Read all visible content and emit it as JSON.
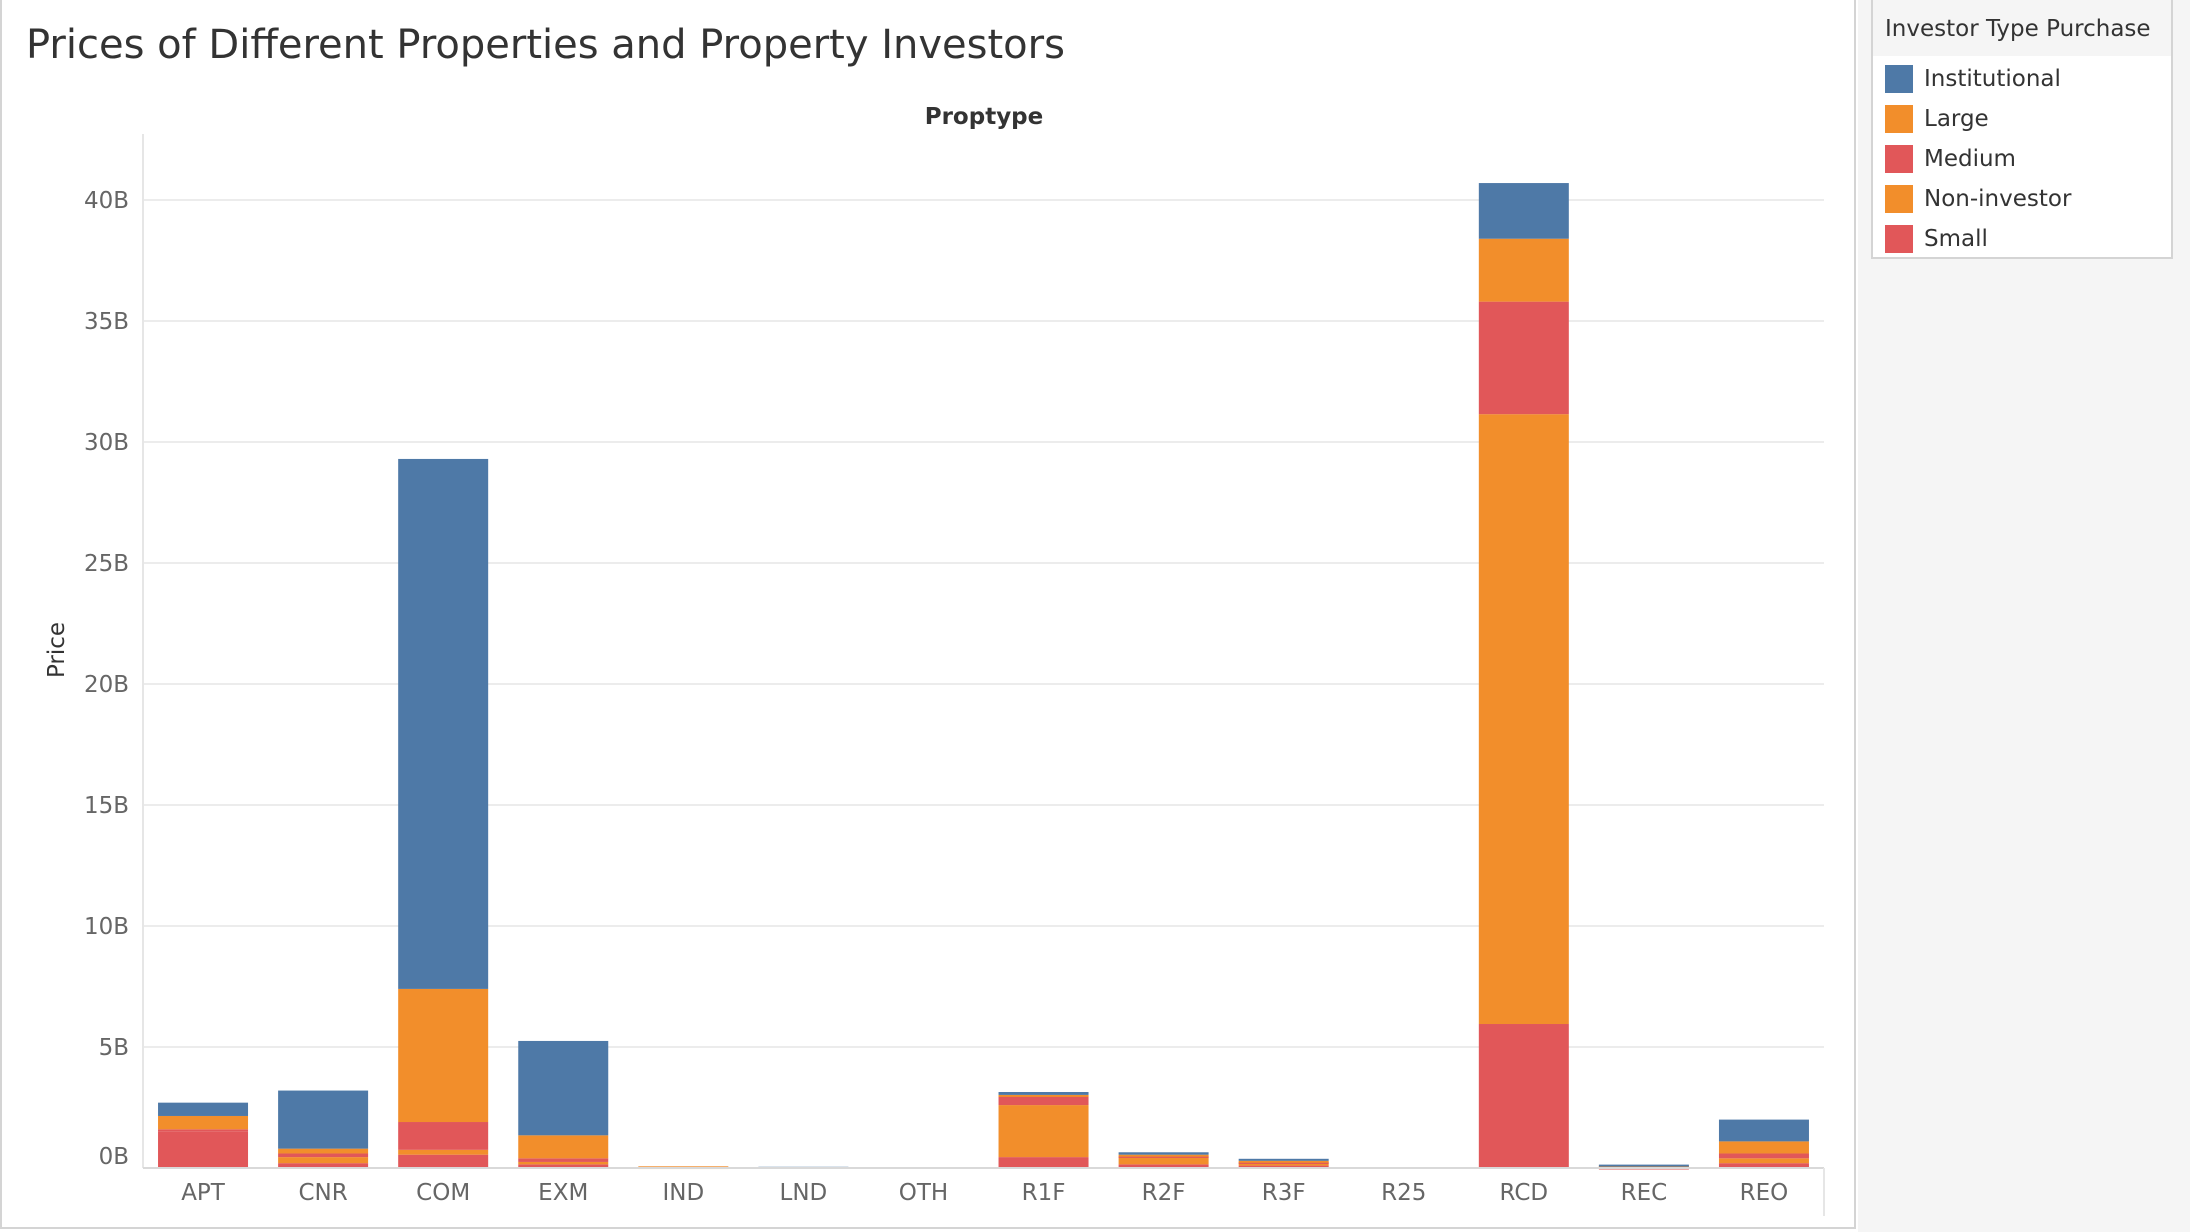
{
  "chart_data": {
    "type": "bar",
    "stacked": true,
    "title": "Prices of Different Properties and Property Investors",
    "column_header": "Proptype",
    "xlabel": "",
    "ylabel": "Price",
    "ylim": [
      0,
      42
    ],
    "y_unit": "B",
    "y_ticks": [
      "0B",
      "5B",
      "10B",
      "15B",
      "20B",
      "25B",
      "30B",
      "35B",
      "40B"
    ],
    "y_tick_values": [
      0,
      5,
      10,
      15,
      20,
      25,
      30,
      35,
      40
    ],
    "categories": [
      "APT",
      "CNR",
      "COM",
      "EXM",
      "IND",
      "LND",
      "OTH",
      "R1F",
      "R2F",
      "R3F",
      "R25",
      "RCD",
      "REC",
      "REO"
    ],
    "grid": true,
    "legend_position": "right",
    "legend_title": "Investor Type Purchase",
    "stack_order": [
      "Small",
      "Non-investor",
      "Medium",
      "Large",
      "Institutional"
    ],
    "series": [
      {
        "name": "Institutional",
        "color": "#4e79a7",
        "values": [
          0.55,
          2.4,
          21.9,
          3.9,
          0,
          0.05,
          0,
          0.12,
          0.1,
          0.08,
          0,
          2.3,
          0.05,
          0.9
        ]
      },
      {
        "name": "Large",
        "color": "#f28e2b",
        "values": [
          0.55,
          0.2,
          5.5,
          0.95,
          0.03,
          0,
          0,
          0.02,
          0.05,
          0.05,
          0,
          2.6,
          0.03,
          0.5
        ]
      },
      {
        "name": "Medium",
        "color": "#e15759",
        "values": [
          0.1,
          0.15,
          1.15,
          0.15,
          0,
          0,
          0,
          0.4,
          0.05,
          0.05,
          0,
          4.65,
          0.02,
          0.2
        ]
      },
      {
        "name": "Non-investor",
        "color": "#f28e2b",
        "values": [
          0,
          0.25,
          0.2,
          0.1,
          0.04,
          0,
          0,
          2.15,
          0.3,
          0.1,
          0,
          25.2,
          0.02,
          0.2
        ]
      },
      {
        "name": "Small",
        "color": "#e15759",
        "values": [
          1.5,
          0.2,
          0.55,
          0.15,
          0,
          0,
          0,
          0.45,
          0.15,
          0.1,
          0,
          5.95,
          0.02,
          0.2
        ]
      }
    ]
  }
}
